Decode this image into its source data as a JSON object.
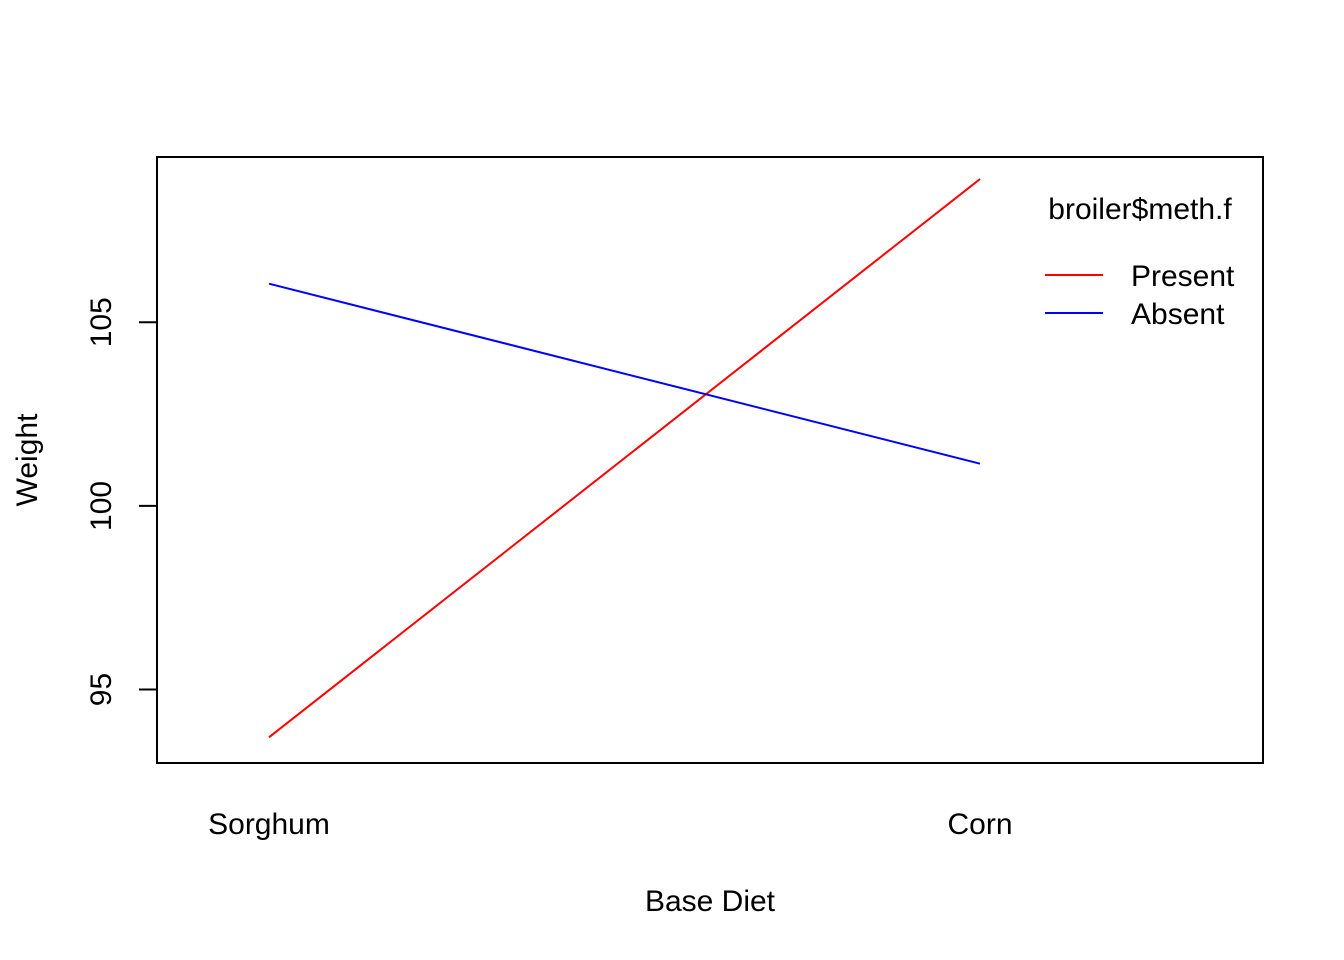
{
  "chart_data": {
    "type": "line",
    "title": "",
    "xlabel": "Base Diet",
    "ylabel": "Weight",
    "categories": [
      "Sorghum",
      "Corn"
    ],
    "ylim": [
      93,
      109.5
    ],
    "yticks": [
      95,
      100,
      105
    ],
    "grid": false,
    "legend": {
      "title": "broiler$meth.f",
      "placement": "top-right"
    },
    "series": [
      {
        "name": "Present",
        "color": "#ff0000",
        "values": [
          93.7,
          108.9
        ]
      },
      {
        "name": "Absent",
        "color": "#0000ff",
        "values": [
          106.05,
          101.15
        ]
      }
    ]
  }
}
